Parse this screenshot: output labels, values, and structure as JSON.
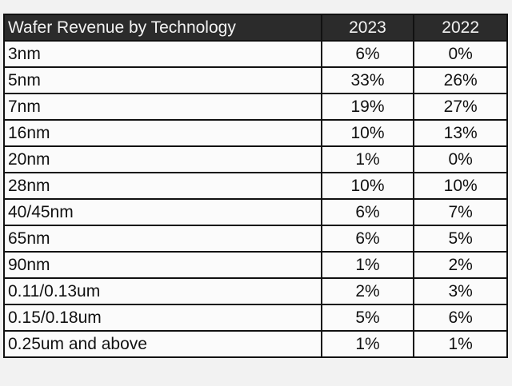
{
  "chart_data": {
    "type": "table",
    "columns": [
      "Wafer Revenue by Technology",
      "2023",
      "2022"
    ],
    "rows": [
      [
        "3nm",
        "6%",
        "0%"
      ],
      [
        "5nm",
        "33%",
        "26%"
      ],
      [
        "7nm",
        "19%",
        "27%"
      ],
      [
        "16nm",
        "10%",
        "13%"
      ],
      [
        "20nm",
        "1%",
        "0%"
      ],
      [
        "28nm",
        "10%",
        "10%"
      ],
      [
        "40/45nm",
        "6%",
        "7%"
      ],
      [
        "65nm",
        "6%",
        "5%"
      ],
      [
        "90nm",
        "1%",
        "2%"
      ],
      [
        "0.11/0.13um",
        "2%",
        "3%"
      ],
      [
        "0.15/0.18um",
        "5%",
        "6%"
      ],
      [
        "0.25um and above",
        "1%",
        "1%"
      ]
    ],
    "colors": {
      "header_bg": "#2b2b2b",
      "header_text": "#f2f2f2",
      "cell_bg": "#fbfbfb",
      "border": "#111111"
    }
  }
}
